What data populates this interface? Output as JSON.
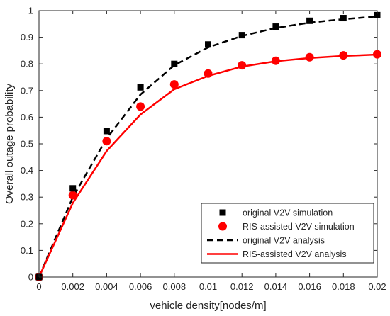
{
  "chart_data": {
    "type": "line",
    "title": "",
    "xlabel": "vehicle density[nodes/m]",
    "ylabel": "Overall outage probability",
    "xlim": [
      0,
      0.02
    ],
    "ylim": [
      0,
      1
    ],
    "xticks": [
      "0",
      "0.002",
      "0.004",
      "0.006",
      "0.008",
      "0.01",
      "0.012",
      "0.014",
      "0.016",
      "0.018",
      "0.02"
    ],
    "yticks": [
      "0",
      "0.1",
      "0.2",
      "0.3",
      "0.4",
      "0.5",
      "0.6",
      "0.7",
      "0.8",
      "0.9",
      "1"
    ],
    "grid": false,
    "legend_position": "bottom-right",
    "series": [
      {
        "name": "original V2V simulation",
        "style": "marker-square",
        "color": "#000000",
        "x": [
          0,
          0.002,
          0.004,
          0.006,
          0.008,
          0.01,
          0.012,
          0.014,
          0.016,
          0.018,
          0.02
        ],
        "y": [
          0,
          0.333,
          0.548,
          0.712,
          0.8,
          0.873,
          0.908,
          0.94,
          0.962,
          0.972,
          0.983
        ]
      },
      {
        "name": "RIS-assisted V2V simulation",
        "style": "marker-circle",
        "color": "#ff0000",
        "x": [
          0,
          0.002,
          0.004,
          0.006,
          0.008,
          0.01,
          0.012,
          0.014,
          0.016,
          0.018,
          0.02
        ],
        "y": [
          0,
          0.307,
          0.51,
          0.64,
          0.723,
          0.764,
          0.795,
          0.812,
          0.825,
          0.832,
          0.836
        ]
      },
      {
        "name": "original V2V analysis",
        "style": "dashed-line",
        "color": "#000000",
        "x": [
          0,
          0.002,
          0.004,
          0.006,
          0.008,
          0.01,
          0.012,
          0.014,
          0.016,
          0.018,
          0.02
        ],
        "y": [
          0,
          0.3,
          0.52,
          0.685,
          0.795,
          0.862,
          0.905,
          0.935,
          0.955,
          0.968,
          0.978
        ]
      },
      {
        "name": "RIS-assisted V2V analysis",
        "style": "solid-line",
        "color": "#ff0000",
        "x": [
          0,
          0.002,
          0.004,
          0.006,
          0.008,
          0.01,
          0.012,
          0.014,
          0.016,
          0.018,
          0.02
        ],
        "y": [
          0,
          0.278,
          0.473,
          0.61,
          0.705,
          0.755,
          0.79,
          0.81,
          0.822,
          0.83,
          0.835
        ]
      }
    ]
  }
}
